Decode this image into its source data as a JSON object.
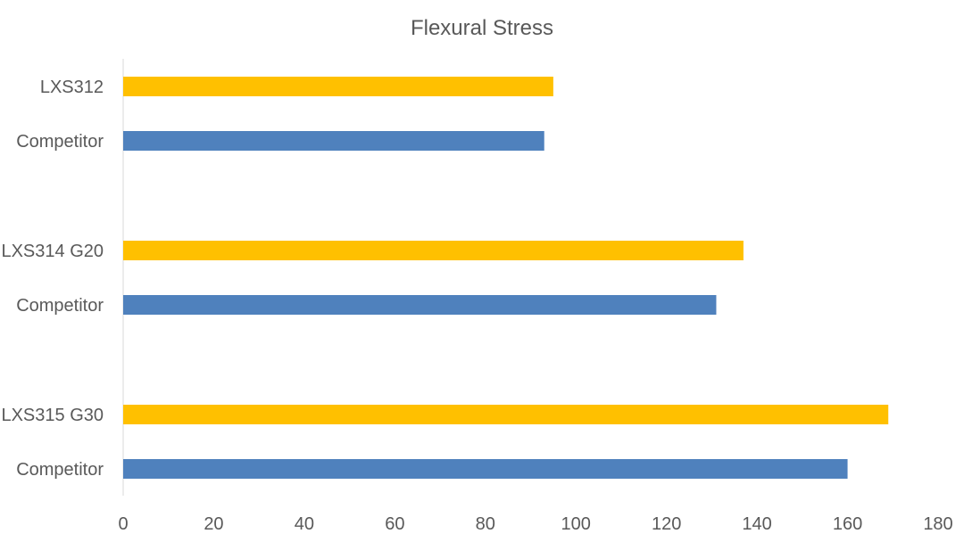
{
  "chart_data": {
    "type": "bar",
    "orientation": "horizontal",
    "title": "Flexural Stress",
    "xlabel": "",
    "ylabel": "",
    "xlim": [
      0,
      180
    ],
    "xticks": [
      "0",
      "20",
      "40",
      "60",
      "80",
      "100",
      "120",
      "140",
      "160",
      "180"
    ],
    "grid": false,
    "categories": [
      "LXS312",
      "Competitor",
      "LXS314 G20",
      "Competitor",
      "LXS315 G30",
      "Competitor"
    ],
    "values": [
      95,
      93,
      137,
      131,
      169,
      160
    ],
    "bar_colors": [
      "#FFC000",
      "#4F81BD",
      "#FFC000",
      "#4F81BD",
      "#FFC000",
      "#4F81BD"
    ],
    "axis_color": "#D9D9D9",
    "text_color": "#595959"
  }
}
